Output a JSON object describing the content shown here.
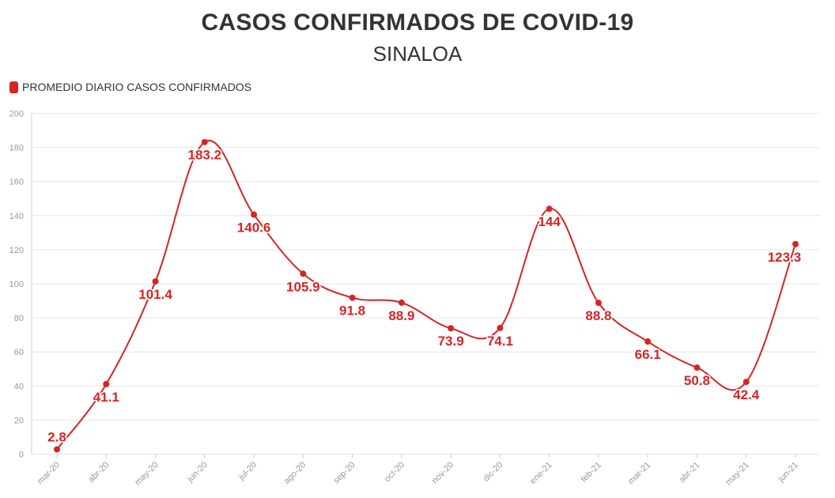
{
  "title": "CASOS CONFIRMADOS DE COVID-19",
  "subtitle": "SINALOA",
  "legend": {
    "label": "PROMEDIO DIARIO CASOS CONFIRMADOS"
  },
  "colors": {
    "series": "#d72424",
    "grid": "#e6e6e6",
    "axis_text": "#999999",
    "title": "#333333"
  },
  "chart_data": {
    "type": "line",
    "title": "CASOS CONFIRMADOS DE COVID-19",
    "subtitle": "SINALOA",
    "xlabel": "",
    "ylabel": "",
    "ylim": [
      0,
      200
    ],
    "yticks": [
      0,
      20,
      40,
      60,
      80,
      100,
      120,
      140,
      160,
      180,
      200
    ],
    "grid": true,
    "legend_position": "top-left",
    "categories": [
      "mar-20",
      "abr-20",
      "may-20",
      "jun-20",
      "jul-20",
      "ago-20",
      "sep-20",
      "oct-20",
      "nov-20",
      "dic-20",
      "ene-21",
      "feb-21",
      "mar-21",
      "abr-21",
      "may-21",
      "jun-21"
    ],
    "series": [
      {
        "name": "PROMEDIO DIARIO CASOS CONFIRMADOS",
        "values": [
          2.8,
          41.1,
          101.4,
          183.2,
          140.6,
          105.9,
          91.8,
          88.9,
          73.9,
          74.1,
          144,
          88.8,
          66.1,
          50.8,
          42.4,
          123.3
        ],
        "labels": [
          "2.8",
          "41.1",
          "101.4",
          "183.2",
          "140.6",
          "105.9",
          "91.8",
          "88.9",
          "73.9",
          "74.1",
          "144",
          "88.8",
          "66.1",
          "50.8",
          "42.4",
          "123.3"
        ]
      }
    ]
  }
}
